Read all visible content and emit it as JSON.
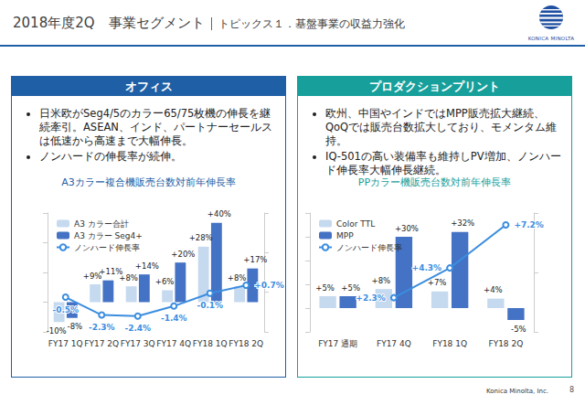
{
  "header": {
    "title": "2018年度2Q　事業セグメント",
    "subtitle": "トピックス１．基盤事業の収益力強化",
    "logo": "KONICA MINOLTA"
  },
  "panels": [
    {
      "title": "オフィス",
      "bullets": [
        "日米欧がSeg4/5のカラー65/75枚機の伸長を継続牽引。ASEAN、インド、パートナーセールスは低速から高速まで大幅伸長。",
        "ノンハードの伸長率が続伸。"
      ]
    },
    {
      "title": "プロダクションプリント",
      "bullets": [
        "欧州、中国やインドではMPP販売拡大継続、QoQでは販売台数拡大しており、モメンタム維持。",
        "IQ-501の高い装備率も維持しPV増加、ノンハード伸長率大幅伸長継続。"
      ]
    }
  ],
  "footer": {
    "company": "Konica Minolta, Inc.",
    "page": 8
  },
  "chart_data": [
    {
      "type": "bar",
      "title": "A3カラー複合機販売台数対前年伸長率",
      "categories": [
        "FY17 1Q",
        "FY17 2Q",
        "FY17 3Q",
        "FY17 4Q",
        "FY18 1Q",
        "FY18 2Q"
      ],
      "series": [
        {
          "name": "A3 カラー合計",
          "type": "bar",
          "color": "#c5d9ef",
          "values": [
            -10,
            9,
            8,
            6,
            28,
            8
          ],
          "value_labels": [
            "-10%",
            "+9%",
            "+8%",
            "+6%",
            "+28%",
            "+8%"
          ]
        },
        {
          "name": "A3 カラー Seg4+",
          "type": "bar",
          "color": "#4472c4",
          "values": [
            -8,
            11,
            14,
            20,
            40,
            17
          ],
          "value_labels": [
            "-8%",
            "+11%",
            "+14%",
            "+20%",
            "+40%",
            "+17%"
          ]
        },
        {
          "name": "ノンハード伸長率",
          "type": "line",
          "axis": "y2",
          "color": "#3b8de0",
          "marker": "circle",
          "values": [
            -0.5,
            -2.3,
            -2.4,
            -1.4,
            -0.1,
            0.7
          ],
          "value_labels": [
            "-0.5%",
            "-2.3%",
            "-2.4%",
            "-1.4%",
            "-0.1%",
            "+0.7%"
          ]
        }
      ],
      "ylim": [
        -15,
        45
      ],
      "yticks": [
        -15,
        0,
        15,
        30,
        45
      ],
      "y2lim": [
        -4,
        8
      ],
      "y2ticks": [
        -4,
        0,
        4,
        8
      ],
      "grid": false,
      "legend": "upper left",
      "data_labels": true,
      "tick_labels": "x"
    },
    {
      "type": "bar",
      "title": "PPカラー機販売台数対前年伸長率",
      "categories": [
        "FY17 通期",
        "FY17 4Q",
        "FY18 1Q",
        "FY18 2Q"
      ],
      "series": [
        {
          "name": "Color TTL",
          "type": "bar",
          "color": "#c5d9ef",
          "values": [
            5,
            8,
            7,
            4
          ],
          "value_labels": [
            "+5%",
            "+8%",
            "+7%",
            "+4%"
          ]
        },
        {
          "name": "MPP",
          "type": "bar",
          "color": "#4472c4",
          "values": [
            5,
            30,
            32,
            -5
          ],
          "value_labels": [
            "+5%",
            "+30%",
            "+32%",
            "-5%"
          ]
        },
        {
          "name": "ノンハード伸長率",
          "type": "line",
          "axis": "y2",
          "color": "#3b8de0",
          "marker": "circle",
          "values": [
            null,
            2.3,
            4.3,
            7.2
          ],
          "value_labels": [
            null,
            "+2.3%",
            "+4.3%",
            "+7.2%"
          ]
        }
      ],
      "ylim": [
        -10,
        40
      ],
      "yticks": [
        -10,
        0,
        10,
        20,
        30,
        40
      ],
      "y2lim": [
        0,
        8
      ],
      "y2ticks": [
        0,
        4,
        8
      ],
      "grid": false,
      "legend": "upper left",
      "data_labels": true,
      "tick_labels": "x"
    }
  ]
}
